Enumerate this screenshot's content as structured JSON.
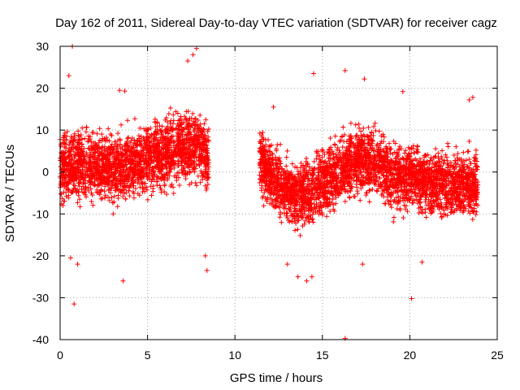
{
  "chart_data": {
    "type": "scatter",
    "title": "Day 162 of 2011, Sidereal Day-to-day VTEC variation (SDTVAR) for receiver cagz",
    "xlabel": "GPS time / hours",
    "ylabel": "SDTVAR / TECUs",
    "xlim": [
      0,
      25
    ],
    "ylim": [
      -40,
      30
    ],
    "x_ticks": [
      0,
      5,
      10,
      15,
      20,
      25
    ],
    "y_ticks": [
      -40,
      -30,
      -20,
      -10,
      0,
      10,
      20,
      30
    ],
    "x_tick_labels": [
      "0",
      "5",
      "10",
      "15",
      "20",
      "25"
    ],
    "y_tick_labels": [
      "-40",
      "-30",
      "-20",
      "-10",
      "0",
      "10",
      "20",
      "30"
    ],
    "grid": true,
    "marker": "plus",
    "color": "#ff0000",
    "series": [
      {
        "name": "SDTVAR",
        "segments": [
          {
            "x_start": 0.0,
            "x_end": 8.5,
            "trend": [
              [
                0.0,
                1.0
              ],
              [
                1.5,
                2.0
              ],
              [
                3.0,
                1.0
              ],
              [
                4.0,
                2.0
              ],
              [
                5.5,
                4.0
              ],
              [
                7.0,
                6.0
              ],
              [
                8.0,
                6.0
              ],
              [
                8.5,
                2.0
              ]
            ],
            "spread": 4.5
          },
          {
            "x_start": 11.4,
            "x_end": 23.9,
            "trend": [
              [
                11.4,
                3.0
              ],
              [
                12.5,
                -3.0
              ],
              [
                13.5,
                -6.0
              ],
              [
                14.5,
                -4.0
              ],
              [
                15.5,
                -1.0
              ],
              [
                17.0,
                3.0
              ],
              [
                18.0,
                2.0
              ],
              [
                19.0,
                -1.0
              ],
              [
                20.0,
                -1.0
              ],
              [
                21.5,
                -3.0
              ],
              [
                23.0,
                -3.0
              ],
              [
                23.9,
                -3.0
              ]
            ],
            "spread": 4.2
          }
        ],
        "outliers": [
          [
            0.7,
            30.0
          ],
          [
            0.8,
            -31.5
          ],
          [
            3.6,
            -26.0
          ],
          [
            7.3,
            26.5
          ],
          [
            7.8,
            29.5
          ],
          [
            7.6,
            28.0
          ],
          [
            0.5,
            23.0
          ],
          [
            8.4,
            -23.5
          ],
          [
            8.3,
            -20.0
          ],
          [
            1.0,
            -22.0
          ],
          [
            0.6,
            -20.5
          ],
          [
            3.4,
            19.5
          ],
          [
            3.7,
            19.3
          ],
          [
            14.5,
            23.5
          ],
          [
            16.3,
            24.2
          ],
          [
            16.3,
            -39.7
          ],
          [
            14.1,
            -26.0
          ],
          [
            13.0,
            -22.0
          ],
          [
            13.6,
            -25.0
          ],
          [
            17.3,
            -22.0
          ],
          [
            20.1,
            -30.2
          ],
          [
            20.7,
            -21.5
          ],
          [
            19.6,
            19.2
          ],
          [
            23.6,
            17.8
          ],
          [
            17.4,
            22.2
          ],
          [
            23.4,
            17.2
          ],
          [
            14.4,
            -25.0
          ],
          [
            12.2,
            15.5
          ]
        ]
      }
    ]
  }
}
